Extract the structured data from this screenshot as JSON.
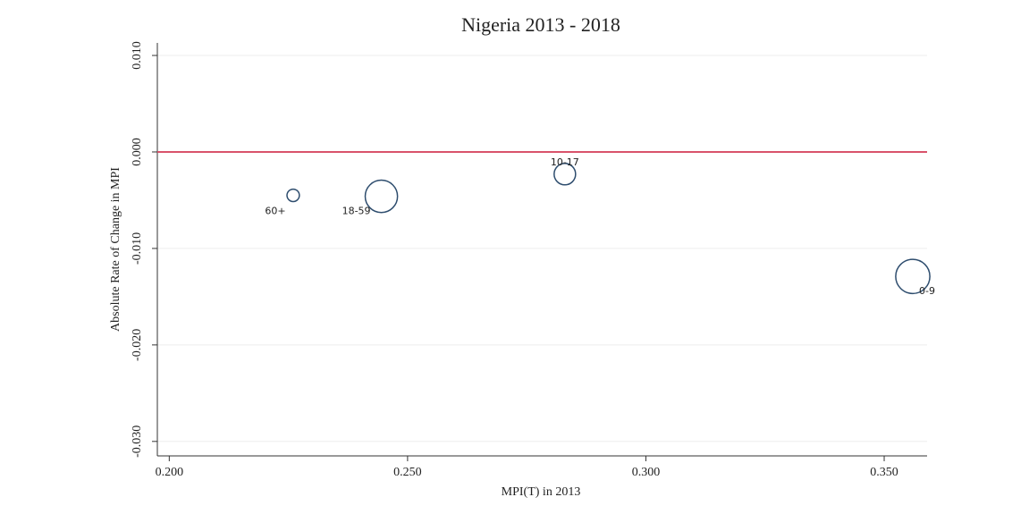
{
  "chart_data": {
    "type": "scatter",
    "title": "Nigeria 2013 - 2018",
    "x_label": "MPI(T) in 2013",
    "y_label": "Absolute Rate of Change in MPI",
    "x": [
      0.226,
      0.2445,
      0.283,
      0.356
    ],
    "values": [
      -0.0045,
      -0.0046,
      -0.0023,
      -0.0129
    ],
    "sizes": [
      5,
      34,
      15,
      38
    ],
    "labels": [
      "60+",
      "18-59",
      "10-17",
      "0-9"
    ],
    "color": "#2e4d6e",
    "label_color": "#8b3a3a",
    "reference_line": {
      "value": 0,
      "color": "#d9536b"
    },
    "xlim": [
      0.1975,
      0.359
    ],
    "ylim": [
      -0.0315,
      0.0113
    ],
    "xticks": [
      {
        "value": 0.2,
        "label": "0.200"
      },
      {
        "value": 0.25,
        "label": "0.250"
      },
      {
        "value": 0.3,
        "label": "0.300"
      },
      {
        "value": 0.35,
        "label": "0.350"
      }
    ],
    "yticks": [
      {
        "value": 0.01,
        "label": "0.010"
      },
      {
        "value": 0,
        "label": "0.000"
      },
      {
        "value": -0.01,
        "label": "-0.010"
      },
      {
        "value": -0.02,
        "label": "-0.020"
      },
      {
        "value": -0.03,
        "label": "-0.030"
      }
    ],
    "grid": true
  }
}
